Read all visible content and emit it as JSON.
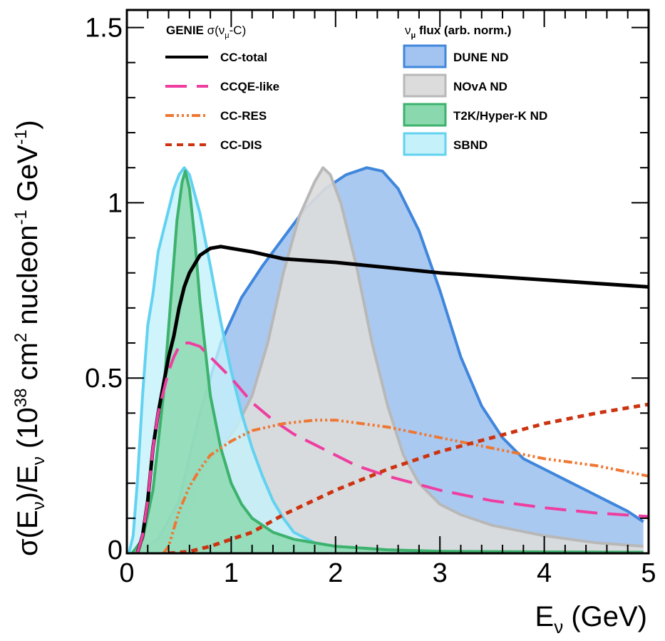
{
  "chart_data": {
    "type": "area",
    "xlabel": {
      "main": "E",
      "sub": "ν",
      "rest": " (GeV)"
    },
    "ylabel": {
      "p1": "σ(E",
      "p1sub": "ν",
      "p2": ")/E",
      "p2sub": "ν",
      "p3": " (10",
      "p3sup": "38",
      "p4": " cm",
      "p4sup": "2",
      "p5": " nucleon",
      "p5sup": "-1",
      "p6": " GeV",
      "p6sup": "-1",
      "p7": ")"
    },
    "xlim": [
      0,
      5
    ],
    "ylim": [
      0,
      1.55
    ],
    "xticks": [
      {
        "value": 0,
        "label": "0"
      },
      {
        "value": 1,
        "label": "1"
      },
      {
        "value": 2,
        "label": "2"
      },
      {
        "value": 3,
        "label": "3"
      },
      {
        "value": 4,
        "label": "4"
      },
      {
        "value": 5,
        "label": "5"
      }
    ],
    "yticks": [
      {
        "value": 0,
        "label": "0"
      },
      {
        "value": 0.5,
        "label": "0.5"
      },
      {
        "value": 1,
        "label": "1"
      },
      {
        "value": 1.5,
        "label": "1.5"
      }
    ],
    "legend_left": {
      "title_prefix": "GENIE ",
      "title_sigma": "σ(ν",
      "title_sub": "μ",
      "title_suffix": "-C)",
      "items": [
        {
          "name": "CC-total",
          "color": "#000000",
          "dash": "none"
        },
        {
          "name": "CCQE-like",
          "color": "#ee3ea0",
          "dash": "long"
        },
        {
          "name": "CC-RES",
          "color": "#ee7733",
          "dash": "dashdot"
        },
        {
          "name": "CC-DIS",
          "color": "#cc3311",
          "dash": "short"
        }
      ]
    },
    "legend_right": {
      "title_nu": "ν",
      "title_sub": "μ",
      "title_suffix": " flux (arb. norm.)",
      "items": [
        {
          "name": "DUNE ND",
          "fill": "#a3c4f0",
          "stroke": "#3f86dc"
        },
        {
          "name": "NOvA ND",
          "fill": "#dcdcdc",
          "stroke": "#b8b8b8"
        },
        {
          "name": "T2K/Hyper-K ND",
          "fill": "#8ad9ae",
          "stroke": "#3cb26c"
        },
        {
          "name": "SBND",
          "fill": "#c4f1fa",
          "stroke": "#62d2f0"
        }
      ]
    },
    "flux_series": [
      {
        "name": "DUNE ND",
        "fill": "#a3c4f0",
        "stroke": "#3f86dc",
        "opacity": 0.92,
        "points": [
          [
            0.05,
            0
          ],
          [
            0.15,
            0.01
          ],
          [
            0.3,
            0.04
          ],
          [
            0.5,
            0.15
          ],
          [
            0.7,
            0.4
          ],
          [
            0.9,
            0.6
          ],
          [
            1.1,
            0.73
          ],
          [
            1.3,
            0.82
          ],
          [
            1.5,
            0.9
          ],
          [
            1.7,
            0.98
          ],
          [
            1.9,
            1.04
          ],
          [
            2.1,
            1.08
          ],
          [
            2.3,
            1.1
          ],
          [
            2.45,
            1.09
          ],
          [
            2.6,
            1.04
          ],
          [
            2.8,
            0.92
          ],
          [
            3.0,
            0.75
          ],
          [
            3.2,
            0.56
          ],
          [
            3.4,
            0.42
          ],
          [
            3.6,
            0.33
          ],
          [
            3.8,
            0.27
          ],
          [
            4.0,
            0.24
          ],
          [
            4.2,
            0.21
          ],
          [
            4.4,
            0.18
          ],
          [
            4.6,
            0.15
          ],
          [
            4.8,
            0.12
          ],
          [
            4.95,
            0.09
          ]
        ]
      },
      {
        "name": "NOvA ND",
        "fill": "#dcdcdc",
        "stroke": "#b8b8b8",
        "opacity": 0.92,
        "points": [
          [
            0.05,
            0
          ],
          [
            0.15,
            0.02
          ],
          [
            0.3,
            0.03
          ],
          [
            0.45,
            0.05
          ],
          [
            0.6,
            0.12
          ],
          [
            0.75,
            0.25
          ],
          [
            0.9,
            0.3
          ],
          [
            1.05,
            0.36
          ],
          [
            1.2,
            0.45
          ],
          [
            1.35,
            0.6
          ],
          [
            1.5,
            0.8
          ],
          [
            1.65,
            0.96
          ],
          [
            1.8,
            1.06
          ],
          [
            1.88,
            1.1
          ],
          [
            1.95,
            1.08
          ],
          [
            2.05,
            1.0
          ],
          [
            2.2,
            0.82
          ],
          [
            2.35,
            0.6
          ],
          [
            2.5,
            0.42
          ],
          [
            2.65,
            0.28
          ],
          [
            2.8,
            0.2
          ],
          [
            3.0,
            0.14
          ],
          [
            3.2,
            0.11
          ],
          [
            3.5,
            0.08
          ],
          [
            4.0,
            0.05
          ],
          [
            4.5,
            0.03
          ],
          [
            4.95,
            0.02
          ]
        ]
      },
      {
        "name": "SBND",
        "fill": "#c4f1fa",
        "stroke": "#62d2f0",
        "opacity": 0.8,
        "points": [
          [
            0.02,
            0
          ],
          [
            0.06,
            0.05
          ],
          [
            0.1,
            0.2
          ],
          [
            0.15,
            0.45
          ],
          [
            0.2,
            0.65
          ],
          [
            0.25,
            0.74
          ],
          [
            0.3,
            0.86
          ],
          [
            0.35,
            0.92
          ],
          [
            0.4,
            0.98
          ],
          [
            0.45,
            1.04
          ],
          [
            0.5,
            1.08
          ],
          [
            0.55,
            1.1
          ],
          [
            0.6,
            1.08
          ],
          [
            0.7,
            0.97
          ],
          [
            0.8,
            0.82
          ],
          [
            0.9,
            0.66
          ],
          [
            1.0,
            0.52
          ],
          [
            1.1,
            0.4
          ],
          [
            1.2,
            0.3
          ],
          [
            1.3,
            0.22
          ],
          [
            1.4,
            0.15
          ],
          [
            1.5,
            0.1
          ],
          [
            1.6,
            0.06
          ],
          [
            1.8,
            0.03
          ],
          [
            2.0,
            0.02
          ],
          [
            2.5,
            0.01
          ],
          [
            3.0,
            0.005
          ],
          [
            4.0,
            0.003
          ],
          [
            4.95,
            0.002
          ]
        ]
      },
      {
        "name": "T2K/Hyper-K ND",
        "fill": "#8ad9ae",
        "stroke": "#3cb26c",
        "opacity": 0.82,
        "points": [
          [
            0.05,
            0
          ],
          [
            0.15,
            0.04
          ],
          [
            0.25,
            0.18
          ],
          [
            0.35,
            0.45
          ],
          [
            0.42,
            0.72
          ],
          [
            0.48,
            0.95
          ],
          [
            0.53,
            1.06
          ],
          [
            0.56,
            1.09
          ],
          [
            0.6,
            1.04
          ],
          [
            0.65,
            0.9
          ],
          [
            0.7,
            0.72
          ],
          [
            0.8,
            0.45
          ],
          [
            0.9,
            0.3
          ],
          [
            1.0,
            0.2
          ],
          [
            1.1,
            0.14
          ],
          [
            1.2,
            0.1
          ],
          [
            1.4,
            0.06
          ],
          [
            1.6,
            0.04
          ],
          [
            1.8,
            0.03
          ],
          [
            2.0,
            0.02
          ],
          [
            2.5,
            0.01
          ],
          [
            3.0,
            0.006
          ],
          [
            4.0,
            0.004
          ],
          [
            4.95,
            0.003
          ]
        ]
      }
    ],
    "xsec_series": [
      {
        "name": "CC-total",
        "color": "#000000",
        "dash": "none",
        "width": 5,
        "points": [
          [
            0.1,
            0
          ],
          [
            0.15,
            0.05
          ],
          [
            0.2,
            0.15
          ],
          [
            0.25,
            0.3
          ],
          [
            0.3,
            0.4
          ],
          [
            0.35,
            0.48
          ],
          [
            0.4,
            0.56
          ],
          [
            0.45,
            0.62
          ],
          [
            0.5,
            0.7
          ],
          [
            0.55,
            0.76
          ],
          [
            0.6,
            0.8
          ],
          [
            0.7,
            0.85
          ],
          [
            0.8,
            0.87
          ],
          [
            0.9,
            0.875
          ],
          [
            1.0,
            0.87
          ],
          [
            1.2,
            0.86
          ],
          [
            1.5,
            0.84
          ],
          [
            2.0,
            0.83
          ],
          [
            2.5,
            0.815
          ],
          [
            3.0,
            0.8
          ],
          [
            3.5,
            0.79
          ],
          [
            4.0,
            0.78
          ],
          [
            4.5,
            0.77
          ],
          [
            5.0,
            0.76
          ]
        ]
      },
      {
        "name": "CCQE-like",
        "color": "#ee3ea0",
        "dash": "long",
        "width": 4,
        "points": [
          [
            0.1,
            0
          ],
          [
            0.15,
            0.05
          ],
          [
            0.2,
            0.15
          ],
          [
            0.25,
            0.3
          ],
          [
            0.3,
            0.4
          ],
          [
            0.35,
            0.46
          ],
          [
            0.4,
            0.52
          ],
          [
            0.45,
            0.56
          ],
          [
            0.5,
            0.59
          ],
          [
            0.55,
            0.6
          ],
          [
            0.6,
            0.6
          ],
          [
            0.7,
            0.59
          ],
          [
            0.8,
            0.56
          ],
          [
            1.0,
            0.5
          ],
          [
            1.2,
            0.43
          ],
          [
            1.4,
            0.38
          ],
          [
            1.6,
            0.34
          ],
          [
            1.8,
            0.31
          ],
          [
            2.0,
            0.28
          ],
          [
            2.2,
            0.25
          ],
          [
            2.5,
            0.22
          ],
          [
            3.0,
            0.18
          ],
          [
            3.5,
            0.15
          ],
          [
            4.0,
            0.13
          ],
          [
            4.5,
            0.115
          ],
          [
            5.0,
            0.105
          ]
        ]
      },
      {
        "name": "CC-RES",
        "color": "#ee7733",
        "dash": "dashdot",
        "width": 4,
        "points": [
          [
            0.35,
            0
          ],
          [
            0.4,
            0.02
          ],
          [
            0.45,
            0.07
          ],
          [
            0.5,
            0.12
          ],
          [
            0.6,
            0.19
          ],
          [
            0.7,
            0.24
          ],
          [
            0.8,
            0.28
          ],
          [
            0.9,
            0.3
          ],
          [
            1.0,
            0.32
          ],
          [
            1.2,
            0.35
          ],
          [
            1.5,
            0.37
          ],
          [
            1.8,
            0.38
          ],
          [
            2.0,
            0.38
          ],
          [
            2.5,
            0.36
          ],
          [
            3.0,
            0.33
          ],
          [
            3.5,
            0.3
          ],
          [
            4.0,
            0.27
          ],
          [
            4.5,
            0.25
          ],
          [
            5.0,
            0.22
          ]
        ]
      },
      {
        "name": "CC-DIS",
        "color": "#cc3311",
        "dash": "short",
        "width": 5,
        "points": [
          [
            0.4,
            0
          ],
          [
            0.6,
            0.005
          ],
          [
            0.8,
            0.02
          ],
          [
            1.0,
            0.04
          ],
          [
            1.2,
            0.06
          ],
          [
            1.5,
            0.11
          ],
          [
            2.0,
            0.18
          ],
          [
            2.5,
            0.24
          ],
          [
            3.0,
            0.29
          ],
          [
            3.5,
            0.33
          ],
          [
            4.0,
            0.37
          ],
          [
            4.5,
            0.4
          ],
          [
            5.0,
            0.425
          ]
        ]
      }
    ]
  }
}
